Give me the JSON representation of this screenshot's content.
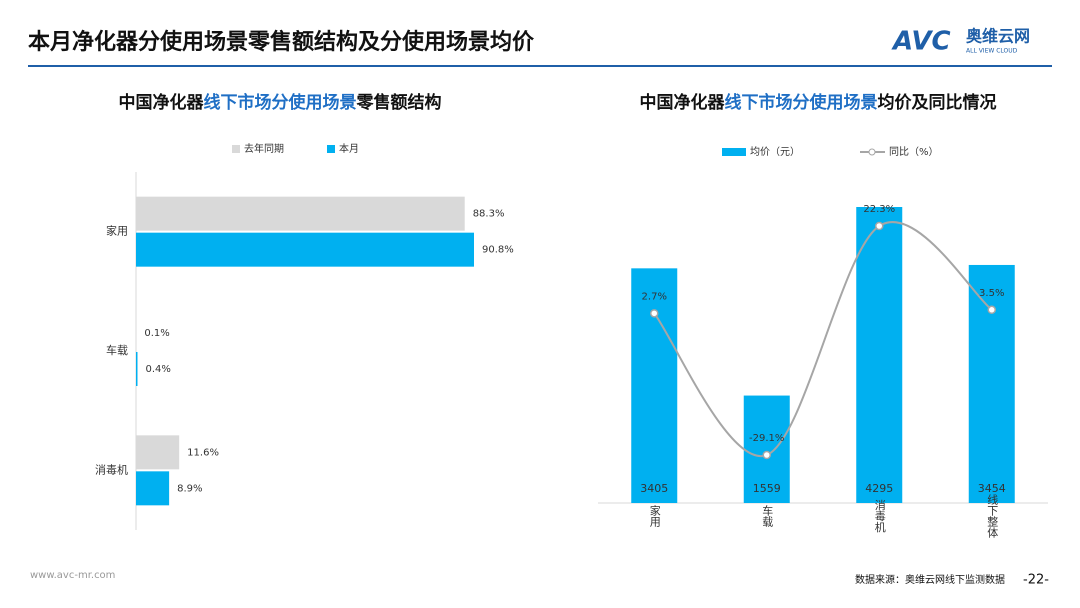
{
  "header": {
    "title": "本月净化器分使用场景零售额结构及分使用场景均价",
    "logo": {
      "mark": "AVC",
      "name": "奥维云网",
      "tagline": "ALL VIEW CLOUD"
    }
  },
  "chart_data": [
    {
      "type": "hbar",
      "title": [
        "中国净化器",
        "线下市场分使用场景",
        "零售额结构"
      ],
      "categories": [
        "家用",
        "车载",
        "消毒机"
      ],
      "series": [
        {
          "name": "去年同期",
          "color": "#d9d9d9",
          "values": [
            88.3,
            0.1,
            11.6
          ],
          "value_labels": [
            "88.3%",
            "0.1%",
            "11.6%"
          ]
        },
        {
          "name": "本月",
          "color": "#00b0f0",
          "values": [
            90.8,
            0.4,
            8.9
          ],
          "value_labels": [
            "90.8%",
            "0.4%",
            "8.9%"
          ]
        }
      ]
    },
    {
      "type": "combo",
      "title": [
        "中国净化器",
        "线下市场分使用场景",
        "均价及同比情况"
      ],
      "categories": [
        "家用",
        "车载",
        "消毒机",
        "线下整体"
      ],
      "series": [
        {
          "name": "均价（元）",
          "type": "bar",
          "color": "#00b0f0",
          "values": [
            3405,
            1559,
            4295,
            3454
          ]
        },
        {
          "name": "同比（%）",
          "type": "line",
          "axis": "y2",
          "color": "#a6a6a6",
          "values": [
            2.7,
            -29.1,
            22.3,
            3.5
          ],
          "value_labels": [
            "2.7%",
            "-29.1%",
            "22.3%",
            "3.5%"
          ]
        }
      ]
    }
  ],
  "footer": {
    "website": "www.avc-mr.com",
    "source": "数据来源：奥维云网线下监测数据",
    "page": "-22-"
  }
}
